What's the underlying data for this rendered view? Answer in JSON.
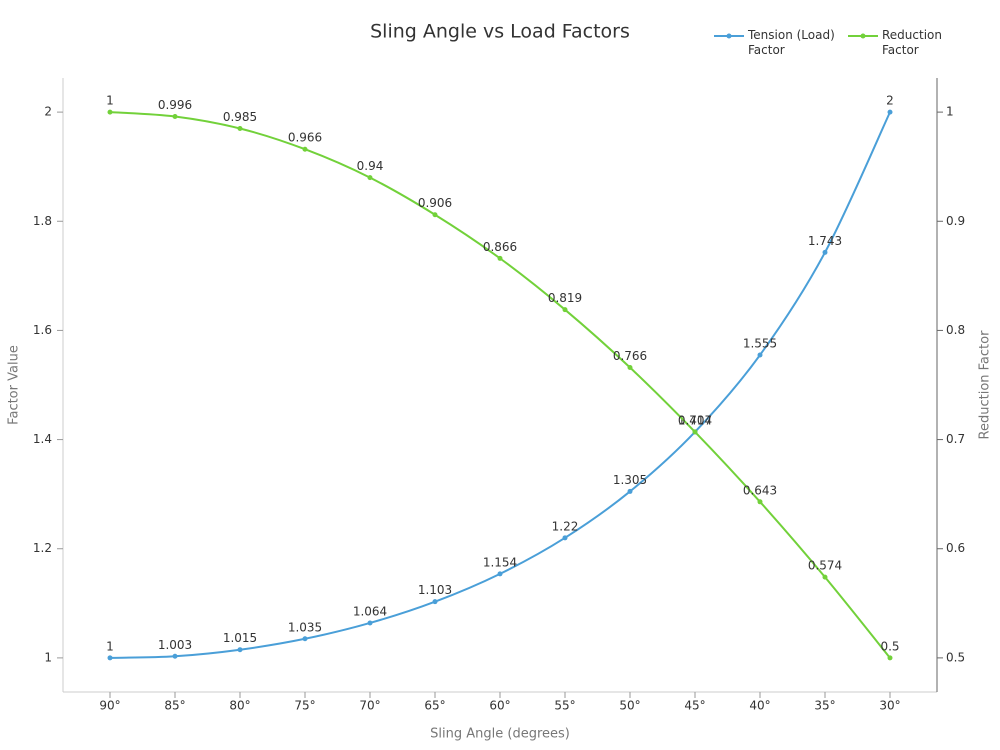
{
  "chart_data": {
    "type": "line",
    "title": "Sling Angle vs Load Factors",
    "x_label": "Sling Angle (degrees)",
    "y_label": "Factor Value",
    "y2_label": "Reduction Factor",
    "categories": [
      "90°",
      "85°",
      "80°",
      "75°",
      "70°",
      "65°",
      "60°",
      "55°",
      "50°",
      "45°",
      "40°",
      "35°",
      "30°"
    ],
    "series": [
      {
        "name": "Tension (Load) Factor",
        "color": "#4a9fd8",
        "values": [
          1,
          1.003,
          1.015,
          1.035,
          1.064,
          1.103,
          1.154,
          1.22,
          1.305,
          1.414,
          1.555,
          1.743,
          2
        ]
      },
      {
        "name": "Reduction Factor",
        "color": "#72d13a",
        "axis": "y2",
        "values": [
          1,
          0.996,
          0.985,
          0.966,
          0.94,
          0.906,
          0.866,
          0.819,
          0.766,
          0.707,
          0.643,
          0.574,
          0.5
        ]
      }
    ],
    "ylim": [
      0.9375,
      2.0625
    ],
    "yticks": [
      1,
      1.2,
      1.4,
      1.6,
      1.8,
      2
    ],
    "y2lim": [
      0.46875,
      1.03125
    ],
    "y2ticks": [
      0.5,
      0.6,
      0.7,
      0.8,
      0.9,
      1
    ],
    "grid": false,
    "legend": "top right"
  }
}
